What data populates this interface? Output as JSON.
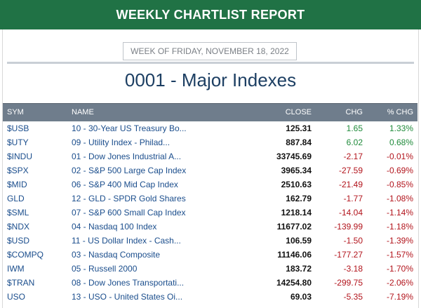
{
  "banner": {
    "title": "WEEKLY CHARTLIST REPORT"
  },
  "report": {
    "week_label": "WEEK OF FRIDAY, NOVEMBER 18, 2022",
    "list_title": "0001 - Major Indexes"
  },
  "table": {
    "headers": {
      "sym": "SYM",
      "name": "NAME",
      "close": "CLOSE",
      "chg": "CHG",
      "pct": "% CHG"
    },
    "rows": [
      {
        "sym": "$USB",
        "name": "10 - 30-Year US Treasury Bo...",
        "close": "125.31",
        "chg": "1.65",
        "pct": "1.33%",
        "dir": "pos"
      },
      {
        "sym": "$UTY",
        "name": "09 - Utility Index - Philad...",
        "close": "887.84",
        "chg": "6.02",
        "pct": "0.68%",
        "dir": "pos"
      },
      {
        "sym": "$INDU",
        "name": "01 - Dow Jones Industrial A...",
        "close": "33745.69",
        "chg": "-2.17",
        "pct": "-0.01%",
        "dir": "neg"
      },
      {
        "sym": "$SPX",
        "name": "02 - S&P 500 Large Cap Index",
        "close": "3965.34",
        "chg": "-27.59",
        "pct": "-0.69%",
        "dir": "neg"
      },
      {
        "sym": "$MID",
        "name": "06 - S&P 400 Mid Cap Index",
        "close": "2510.63",
        "chg": "-21.49",
        "pct": "-0.85%",
        "dir": "neg"
      },
      {
        "sym": "GLD",
        "name": "12 - GLD - SPDR Gold Shares",
        "close": "162.79",
        "chg": "-1.77",
        "pct": "-1.08%",
        "dir": "neg"
      },
      {
        "sym": "$SML",
        "name": "07 - S&P 600 Small Cap Index",
        "close": "1218.14",
        "chg": "-14.04",
        "pct": "-1.14%",
        "dir": "neg"
      },
      {
        "sym": "$NDX",
        "name": "04 - Nasdaq 100 Index",
        "close": "11677.02",
        "chg": "-139.99",
        "pct": "-1.18%",
        "dir": "neg"
      },
      {
        "sym": "$USD",
        "name": "11 - US Dollar Index - Cash...",
        "close": "106.59",
        "chg": "-1.50",
        "pct": "-1.39%",
        "dir": "neg"
      },
      {
        "sym": "$COMPQ",
        "name": "03 - Nasdaq Composite",
        "close": "11146.06",
        "chg": "-177.27",
        "pct": "-1.57%",
        "dir": "neg"
      },
      {
        "sym": "IWM",
        "name": "05 - Russell 2000",
        "close": "183.72",
        "chg": "-3.18",
        "pct": "-1.70%",
        "dir": "neg"
      },
      {
        "sym": "$TRAN",
        "name": "08 - Dow Jones Transportati...",
        "close": "14254.80",
        "chg": "-299.75",
        "pct": "-2.06%",
        "dir": "neg"
      },
      {
        "sym": "USO",
        "name": "13 - USO - United States Oi...",
        "close": "69.03",
        "chg": "-5.35",
        "pct": "-7.19%",
        "dir": "neg"
      }
    ]
  },
  "colors": {
    "banner_bg": "#207245",
    "header_bg": "#6f7d8c",
    "positive": "#1f8a3a",
    "negative": "#b2141c",
    "link": "#1a4d8c",
    "title": "#1d3f63"
  }
}
